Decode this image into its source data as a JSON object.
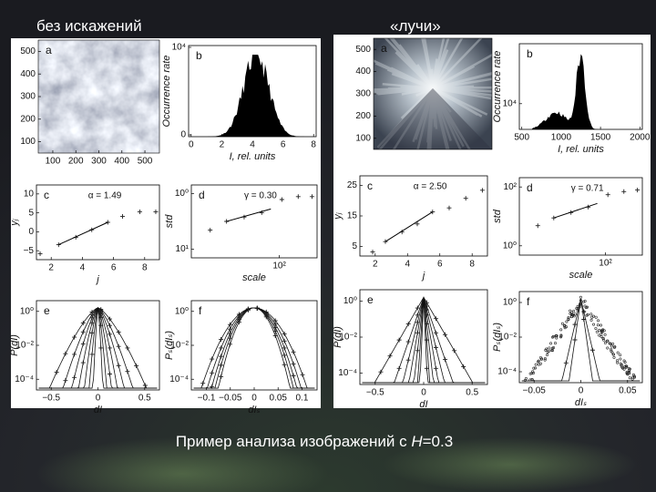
{
  "headings": [
    "без искажений",
    "«лучи»"
  ],
  "caption": {
    "before": "Пример анализа изображений с ",
    "variable": "H",
    "after": "=0.3"
  },
  "panels": [
    {
      "a": {
        "letter": "a",
        "yticks": [
          "500",
          "400",
          "300",
          "200",
          "100"
        ],
        "xticks": [
          "100",
          "200",
          "300",
          "400",
          "500"
        ]
      },
      "b": {
        "letter": "b",
        "ylabel": "Occurrence rate",
        "xlabel": "I, rel. units",
        "yticks": [
          "10⁴",
          "0"
        ],
        "xticks": [
          "0",
          "2",
          "4",
          "6",
          "8"
        ]
      },
      "c": {
        "letter": "c",
        "annotation": "α = 1.49",
        "ylabel": "yⱼ",
        "xlabel": "j",
        "yticks": [
          "10",
          "5",
          "0",
          "−5"
        ],
        "xticks": [
          "2",
          "4",
          "6",
          "8"
        ]
      },
      "d": {
        "letter": "d",
        "annotation": "γ = 0.30",
        "ylabel": "std",
        "xlabel": "scale",
        "yticks": [
          "10⁰",
          "10¹"
        ],
        "xticks": [
          "10²"
        ]
      },
      "e": {
        "letter": "e",
        "ylabel": "P(dI)",
        "xlabel": "dI",
        "yticks": [
          "10⁰",
          "10⁻²",
          "10⁻⁴"
        ],
        "xticks": [
          "−0.5",
          "0",
          "0.5"
        ]
      },
      "f": {
        "letter": "f",
        "ylabel": "Pₛ(dIₛ)",
        "xlabel": "dIₛ",
        "yticks": [
          "10⁰",
          "10⁻²",
          "10⁻⁴"
        ],
        "xticks": [
          "−0.1",
          "−0.05",
          "0",
          "0.05",
          "0.1"
        ]
      }
    },
    {
      "a": {
        "letter": "a",
        "yticks": [
          "500",
          "400",
          "300",
          "200",
          "100"
        ]
      },
      "b": {
        "letter": "b",
        "ylabel": "Occurrence rate",
        "xlabel": "I, rel. units",
        "yticks": [
          "10⁴"
        ],
        "xticks": [
          "500",
          "1000",
          "1500",
          "2000"
        ]
      },
      "c": {
        "letter": "c",
        "annotation": "α = 2.50",
        "ylabel": "yⱼ",
        "xlabel": "j",
        "yticks": [
          "25",
          "15",
          "5"
        ],
        "xticks": [
          "2",
          "4",
          "6",
          "8"
        ]
      },
      "d": {
        "letter": "d",
        "annotation": "γ = 0.71",
        "ylabel": "std",
        "xlabel": "scale",
        "yticks": [
          "10²",
          "10⁰"
        ],
        "xticks": [
          "10²"
        ]
      },
      "e": {
        "letter": "e",
        "ylabel": "P(dI)",
        "xlabel": "dI",
        "yticks": [
          "10⁰",
          "10⁻²",
          "10⁻⁴"
        ],
        "xticks": [
          "−0.5",
          "0",
          "0.5"
        ]
      },
      "f": {
        "letter": "f",
        "ylabel": "Pₛ(dIₛ)",
        "xlabel": "dIₛ",
        "yticks": [
          "10⁰",
          "10⁻²",
          "10⁻⁴"
        ],
        "xticks": [
          "−0.05",
          "0",
          "0.05"
        ]
      }
    }
  ]
}
